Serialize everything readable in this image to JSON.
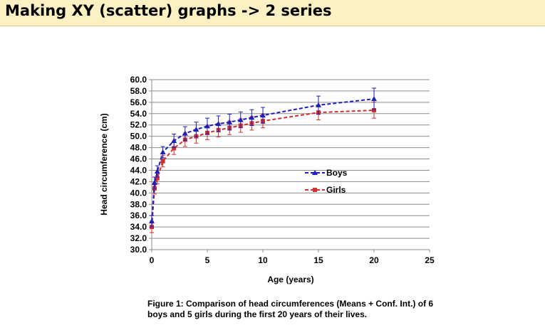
{
  "header": {
    "title": "Making XY (scatter) graphs -> 2 series"
  },
  "caption": "Figure 1: Comparison of head circumferences (Means + Conf. Int.) of 6 boys and 5 girls during the first 20 years of their lives.",
  "chart_data": {
    "type": "scatter",
    "title": "",
    "xlabel": "Age (years)",
    "ylabel": "Head circumference (cm)",
    "xlim": [
      0,
      25
    ],
    "ylim": [
      30,
      60
    ],
    "x_ticks": [
      "0",
      "5",
      "10",
      "15",
      "20",
      "25"
    ],
    "y_ticks": [
      "30.0",
      "32.0",
      "34.0",
      "36.0",
      "38.0",
      "40.0",
      "42.0",
      "44.0",
      "46.0",
      "48.0",
      "50.0",
      "52.0",
      "54.0",
      "56.0",
      "58.0",
      "60.0"
    ],
    "grid": "horizontal",
    "legend_position": "center-right",
    "series": [
      {
        "name": "Boys",
        "color": "#1f1fb5",
        "marker": "triangle",
        "x": [
          0,
          0.25,
          0.5,
          1,
          2,
          3,
          4,
          5,
          6,
          7,
          8,
          9,
          10,
          15,
          20
        ],
        "y": [
          35.0,
          41.8,
          43.8,
          47.2,
          49.2,
          50.5,
          51.2,
          51.8,
          52.2,
          52.5,
          52.9,
          53.3,
          53.7,
          55.5,
          56.6
        ],
        "err": [
          1.0,
          1.0,
          1.0,
          1.0,
          1.2,
          1.2,
          1.3,
          1.4,
          1.4,
          1.4,
          1.4,
          1.4,
          1.4,
          1.6,
          1.9
        ]
      },
      {
        "name": "Girls",
        "color": "#d03030",
        "marker": "square",
        "x": [
          0,
          0.25,
          0.5,
          1,
          2,
          3,
          4,
          5,
          6,
          7,
          8,
          9,
          10,
          15,
          20
        ],
        "y": [
          34.0,
          40.8,
          42.6,
          45.6,
          47.9,
          49.4,
          50.0,
          50.6,
          51.1,
          51.5,
          51.9,
          52.3,
          52.7,
          54.2,
          54.6
        ],
        "err": [
          1.0,
          1.0,
          1.0,
          1.0,
          1.1,
          1.2,
          1.2,
          1.2,
          1.2,
          1.2,
          1.2,
          1.2,
          1.2,
          1.3,
          1.4
        ]
      }
    ]
  }
}
